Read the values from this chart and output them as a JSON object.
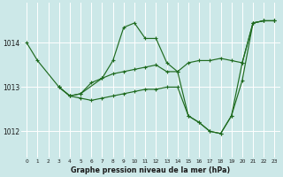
{
  "title": "Graphe pression niveau de la mer (hPa)",
  "bg_color": "#cce8e8",
  "grid_color": "#ffffff",
  "line_color": "#1f6b1f",
  "xlim": [
    -0.5,
    23.5
  ],
  "ylim": [
    1011.4,
    1014.9
  ],
  "yticks": [
    1012,
    1013,
    1014
  ],
  "xticks": [
    0,
    1,
    2,
    3,
    4,
    5,
    6,
    7,
    8,
    9,
    10,
    11,
    12,
    13,
    14,
    15,
    16,
    17,
    18,
    19,
    20,
    21,
    22,
    23
  ],
  "series1": [
    [
      0,
      1014.0
    ],
    [
      1,
      1013.6
    ],
    [
      3,
      1013.0
    ],
    [
      4,
      1012.8
    ],
    [
      5,
      1012.85
    ],
    [
      7,
      1013.2
    ],
    [
      8,
      1013.6
    ],
    [
      9,
      1014.35
    ],
    [
      10,
      1014.45
    ],
    [
      11,
      1014.1
    ],
    [
      12,
      1014.1
    ],
    [
      13,
      1013.55
    ],
    [
      14,
      1013.35
    ],
    [
      15,
      1012.35
    ],
    [
      16,
      1012.2
    ],
    [
      17,
      1012.0
    ],
    [
      18,
      1011.95
    ],
    [
      19,
      1012.35
    ],
    [
      20,
      1013.55
    ],
    [
      21,
      1014.45
    ],
    [
      22,
      1014.5
    ],
    [
      23,
      1014.5
    ]
  ],
  "series2": [
    [
      3,
      1013.0
    ],
    [
      4,
      1012.8
    ],
    [
      5,
      1012.85
    ],
    [
      6,
      1013.1
    ],
    [
      7,
      1013.2
    ],
    [
      8,
      1013.3
    ],
    [
      9,
      1013.35
    ],
    [
      10,
      1013.4
    ],
    [
      11,
      1013.45
    ],
    [
      12,
      1013.5
    ],
    [
      13,
      1013.35
    ],
    [
      14,
      1013.35
    ],
    [
      15,
      1013.55
    ],
    [
      16,
      1013.6
    ],
    [
      17,
      1013.6
    ],
    [
      18,
      1013.65
    ],
    [
      19,
      1013.6
    ],
    [
      20,
      1013.55
    ],
    [
      21,
      1014.45
    ],
    [
      22,
      1014.5
    ],
    [
      23,
      1014.5
    ]
  ],
  "series3": [
    [
      3,
      1013.0
    ],
    [
      4,
      1012.8
    ],
    [
      5,
      1012.75
    ],
    [
      6,
      1012.7
    ],
    [
      7,
      1012.75
    ],
    [
      8,
      1012.8
    ],
    [
      9,
      1012.85
    ],
    [
      10,
      1012.9
    ],
    [
      11,
      1012.95
    ],
    [
      12,
      1012.95
    ],
    [
      13,
      1013.0
    ],
    [
      14,
      1013.0
    ],
    [
      15,
      1012.35
    ],
    [
      16,
      1012.2
    ],
    [
      17,
      1012.0
    ],
    [
      18,
      1011.95
    ],
    [
      19,
      1012.35
    ],
    [
      20,
      1013.15
    ],
    [
      21,
      1014.45
    ],
    [
      22,
      1014.5
    ],
    [
      23,
      1014.5
    ]
  ]
}
